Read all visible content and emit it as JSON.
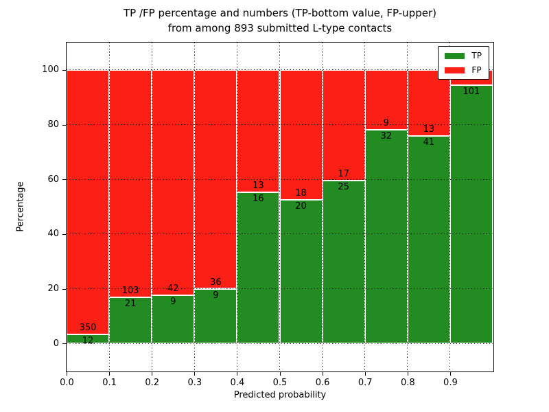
{
  "figure": {
    "title_line1": "TP /FP percentage and numbers (TP-bottom value, FP-upper)",
    "title_line2": "from among 893 submitted L-type contacts"
  },
  "chart_data": {
    "type": "bar",
    "subtype": "stacked-percentage-histogram",
    "title": "TP /FP percentage and numbers (TP-bottom value, FP-upper) from among 893 submitted L-type contacts",
    "xlabel": "Predicted probability",
    "ylabel": "Percentage",
    "total_contacts": 893,
    "xlim": [
      0.0,
      1.0
    ],
    "ylim": [
      -10,
      110
    ],
    "x_ticks": [
      0.0,
      0.1,
      0.2,
      0.3,
      0.4,
      0.5,
      0.6,
      0.7,
      0.8,
      0.9
    ],
    "x_tick_labels": [
      "0.0",
      "0.1",
      "0.2",
      "0.3",
      "0.4",
      "0.5",
      "0.6",
      "0.7",
      "0.8",
      "0.9"
    ],
    "y_ticks": [
      0,
      20,
      40,
      60,
      80,
      100
    ],
    "y_tick_labels": [
      "0",
      "20",
      "40",
      "60",
      "80",
      "100"
    ],
    "grid_style": "dotted",
    "grid_on": true,
    "colors": {
      "tp": "#228b22",
      "fp": "#fc1f15"
    },
    "legend": {
      "position": "upper-right",
      "entries": [
        {
          "label": "TP",
          "color": "#228b22"
        },
        {
          "label": "FP",
          "color": "#fc1f15"
        }
      ]
    },
    "categories": [
      "0.0-0.1",
      "0.1-0.2",
      "0.2-0.3",
      "0.3-0.4",
      "0.4-0.5",
      "0.5-0.6",
      "0.6-0.7",
      "0.7-0.8",
      "0.8-0.9",
      "0.9-1.0"
    ],
    "bins": [
      {
        "x0": 0.0,
        "x1": 0.1,
        "tp_count": 12,
        "fp_count": 350,
        "tp_label": "12",
        "fp_label": "350",
        "tp_percent": 3.31
      },
      {
        "x0": 0.1,
        "x1": 0.2,
        "tp_count": 21,
        "fp_count": 103,
        "tp_label": "21",
        "fp_label": "103",
        "tp_percent": 16.94
      },
      {
        "x0": 0.2,
        "x1": 0.3,
        "tp_count": 9,
        "fp_count": 42,
        "tp_label": "9",
        "fp_label": "42",
        "tp_percent": 17.65
      },
      {
        "x0": 0.3,
        "x1": 0.4,
        "tp_count": 9,
        "fp_count": 36,
        "tp_label": "9",
        "fp_label": "36",
        "tp_percent": 20.0
      },
      {
        "x0": 0.4,
        "x1": 0.5,
        "tp_count": 16,
        "fp_count": 13,
        "tp_label": "16",
        "fp_label": "13",
        "tp_percent": 55.17
      },
      {
        "x0": 0.5,
        "x1": 0.6,
        "tp_count": 20,
        "fp_count": 18,
        "tp_label": "20",
        "fp_label": "18",
        "tp_percent": 52.63
      },
      {
        "x0": 0.6,
        "x1": 0.7,
        "tp_count": 25,
        "fp_count": 17,
        "tp_label": "25",
        "fp_label": "17",
        "tp_percent": 59.52
      },
      {
        "x0": 0.7,
        "x1": 0.8,
        "tp_count": 32,
        "fp_count": 9,
        "tp_label": "32",
        "fp_label": "9",
        "tp_percent": 78.05
      },
      {
        "x0": 0.8,
        "x1": 0.9,
        "tp_count": 41,
        "fp_count": 13,
        "tp_label": "41",
        "fp_label": "13",
        "tp_percent": 75.93
      },
      {
        "x0": 0.9,
        "x1": 1.0,
        "tp_count": 101,
        "fp_count": null,
        "tp_label": "101",
        "fp_label": null,
        "tp_percent": 94.39
      }
    ],
    "fp_top_percent": 100
  }
}
